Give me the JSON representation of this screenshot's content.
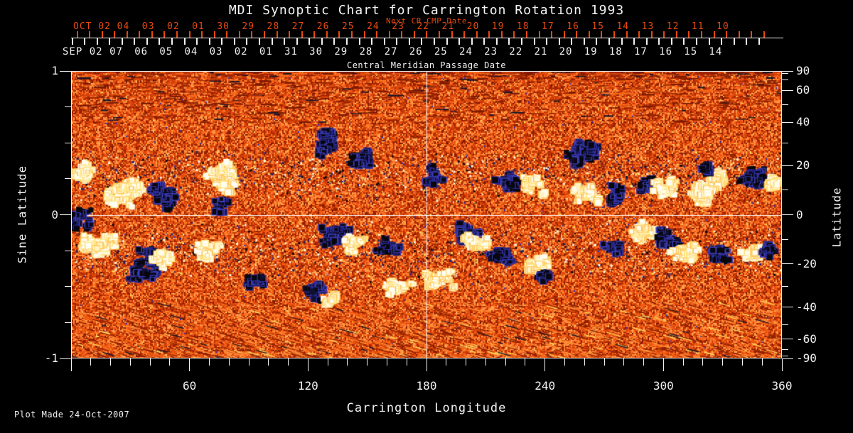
{
  "title": "MDI Synoptic Chart for Carrington Rotation 1993",
  "colors": {
    "background": "#000000",
    "foreground": "#f2f2f2",
    "accent_red": "#e8490e"
  },
  "next_cr_axis": {
    "label": "Next CR CMP Date",
    "month": "OCT 02",
    "dates": [
      "04",
      "03",
      "02",
      "01",
      "30",
      "29",
      "28",
      "27",
      "26",
      "25",
      "24",
      "23",
      "22",
      "21",
      "20",
      "19",
      "18",
      "17",
      "16",
      "15",
      "14",
      "13",
      "12",
      "11",
      "10"
    ]
  },
  "cmp_axis": {
    "label": "Central Meridian Passage Date",
    "month": "SEP 02",
    "dates": [
      "07",
      "06",
      "05",
      "04",
      "03",
      "02",
      "01",
      "31",
      "30",
      "29",
      "28",
      "27",
      "26",
      "25",
      "24",
      "23",
      "22",
      "21",
      "20",
      "19",
      "18",
      "17",
      "16",
      "15",
      "14"
    ]
  },
  "axes": {
    "left": {
      "label": "Sine Latitude",
      "ticks": [
        "1",
        "0",
        "-1"
      ]
    },
    "right": {
      "label": "Latitude",
      "ticks": [
        "90",
        "60",
        "40",
        "20",
        "0",
        "-20",
        "-40",
        "-60",
        "-90"
      ]
    },
    "bottom": {
      "label": "Carrington Longitude",
      "ticks": [
        "60",
        "120",
        "180",
        "240",
        "300",
        "360"
      ]
    }
  },
  "footer": {
    "plot_made": "Plot Made 24-Oct-2007"
  },
  "chart_data": {
    "type": "heatmap",
    "title": "MDI Synoptic Chart for Carrington Rotation 1993",
    "xlabel": "Carrington Longitude",
    "ylabel_left": "Sine Latitude",
    "ylabel_right": "Latitude",
    "x_range": [
      0,
      360
    ],
    "sine_latitude_range": [
      -1,
      1
    ],
    "x_major_ticks": [
      60,
      120,
      180,
      240,
      300,
      360
    ],
    "x_minor_step": 10,
    "left_major_ticks": [
      1,
      0,
      -1
    ],
    "left_minor_step": 0.25,
    "right_major_ticks": [
      90,
      60,
      40,
      20,
      0,
      -20,
      -40,
      -60,
      -90
    ],
    "right_minor_ticks": [
      80,
      70,
      50,
      30,
      10,
      -10,
      -30,
      -50,
      -70,
      -80
    ],
    "grid_lines": {
      "longitude": [
        180
      ],
      "sine_latitude": [
        0
      ]
    },
    "colormap": "solar magnetogram: orange/red quiet sun noise, white/yellow = positive magnetic polarity, black with blue fringe = negative polarity",
    "active_regions_format": [
      "carrington_longitude_deg",
      "sine_latitude",
      "half_width_deg",
      "half_height_sine",
      "polarity(1=white,-1=black)",
      "density"
    ],
    "active_regions": [
      [
        5.4,
        0.28,
        6.5,
        0.1,
        1,
        1
      ],
      [
        3,
        -0.03,
        7,
        0.07,
        -1,
        1
      ],
      [
        27,
        0.15,
        10,
        0.1,
        1,
        1
      ],
      [
        45,
        0.14,
        9,
        0.11,
        -1,
        1
      ],
      [
        74,
        0.26,
        9,
        0.11,
        1,
        1
      ],
      [
        77,
        0.06,
        4.5,
        0.05,
        -1,
        1
      ],
      [
        133,
        0.53,
        16,
        0.14,
        -1,
        0.35
      ],
      [
        149,
        0.41,
        8,
        0.1,
        -1,
        0.8
      ],
      [
        184,
        0.28,
        5.5,
        0.07,
        -1,
        0.8
      ],
      [
        221,
        0.24,
        6.5,
        0.09,
        -1,
        1
      ],
      [
        234,
        0.19,
        6.5,
        0.08,
        1,
        1
      ],
      [
        263,
        0.38,
        12.5,
        0.13,
        -1,
        1
      ],
      [
        261,
        0.16,
        7,
        0.08,
        1,
        1
      ],
      [
        277,
        0.14,
        5,
        0.07,
        -1,
        1
      ],
      [
        290,
        0.22,
        6.5,
        0.08,
        -1,
        1
      ],
      [
        301,
        0.19,
        6,
        0.07,
        1,
        1
      ],
      [
        320,
        0.22,
        16,
        0.15,
        1,
        1
      ],
      [
        324,
        0.31,
        7,
        0.06,
        -1,
        0.5
      ],
      [
        346,
        0.31,
        8,
        0.11,
        -1,
        1
      ],
      [
        356,
        0.24,
        5,
        0.09,
        1,
        1
      ],
      [
        14,
        -0.28,
        9,
        0.14,
        1,
        1
      ],
      [
        38,
        -0.33,
        11,
        0.13,
        -1,
        1
      ],
      [
        45,
        -0.32,
        6,
        0.06,
        1,
        1
      ],
      [
        70,
        -0.27,
        7,
        0.07,
        1,
        1
      ],
      [
        90,
        -0.52,
        9,
        0.09,
        -1,
        0.4
      ],
      [
        125,
        -0.53,
        7,
        0.08,
        -1,
        0.8
      ],
      [
        133,
        -0.58,
        6,
        0.06,
        1,
        0.8
      ],
      [
        135,
        -0.14,
        8.5,
        0.08,
        -1,
        1
      ],
      [
        146,
        -0.19,
        8,
        0.08,
        1,
        1
      ],
      [
        160,
        -0.22,
        6.5,
        0.07,
        -1,
        1
      ],
      [
        166,
        -0.51,
        8,
        0.08,
        1,
        0.8
      ],
      [
        187,
        -0.48,
        8,
        0.09,
        1,
        1
      ],
      [
        201,
        -0.13,
        7,
        0.08,
        -1,
        1.3
      ],
      [
        203,
        -0.21,
        8.5,
        0.08,
        1,
        1
      ],
      [
        218,
        -0.26,
        7,
        0.08,
        -1,
        0.8
      ],
      [
        236,
        -0.37,
        7,
        0.08,
        1,
        1
      ],
      [
        241,
        -0.41,
        5.5,
        0.06,
        -1,
        0.8
      ],
      [
        276,
        -0.24,
        6.5,
        0.07,
        -1,
        1
      ],
      [
        293,
        -0.14,
        9,
        0.09,
        1,
        1
      ],
      [
        302,
        -0.15,
        7,
        0.075,
        -1,
        1.3
      ],
      [
        311,
        -0.24,
        8,
        0.08,
        1,
        1
      ],
      [
        328,
        -0.27,
        6,
        0.065,
        -1,
        1
      ],
      [
        346,
        -0.25,
        7,
        0.08,
        1,
        1
      ],
      [
        355,
        -0.25,
        5,
        0.06,
        -1,
        1
      ]
    ]
  }
}
